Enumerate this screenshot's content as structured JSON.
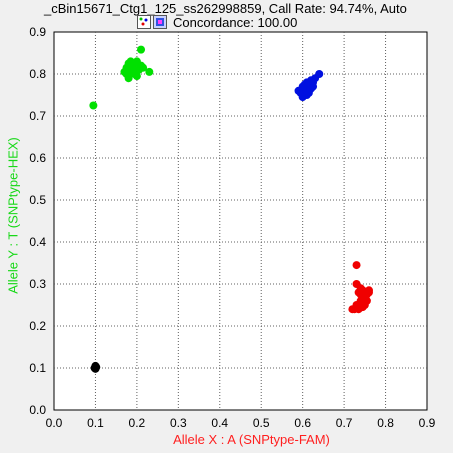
{
  "title": "_cBin15671_Ctg1_125_ss262998859,  Call Rate: 94.74%,  Auto",
  "subtitle": "Concordance: 100.00",
  "icons": [
    "cluster-plot-icon",
    "grid-icon"
  ],
  "chart_data": {
    "type": "scatter",
    "xlabel": "Allele X : A (SNPtype-FAM)",
    "ylabel": "Allele Y : T (SNPtype-HEX)",
    "xlim": [
      0,
      0.9
    ],
    "ylim": [
      0,
      0.9
    ],
    "xticks": [
      "0.0",
      "0.1",
      "0.2",
      "0.3",
      "0.4",
      "0.5",
      "0.6",
      "0.7",
      "0.8",
      "0.9"
    ],
    "yticks": [
      "0.0",
      "0.1",
      "0.2",
      "0.3",
      "0.4",
      "0.5",
      "0.6",
      "0.7",
      "0.8",
      "0.9"
    ],
    "grid": true,
    "series": [
      {
        "color": "#00e000",
        "points": [
          [
            0.095,
            0.725
          ],
          [
            0.21,
            0.858
          ],
          [
            0.23,
            0.805
          ],
          [
            0.17,
            0.805
          ],
          [
            0.175,
            0.815
          ],
          [
            0.18,
            0.79
          ],
          [
            0.185,
            0.83
          ],
          [
            0.19,
            0.82
          ],
          [
            0.195,
            0.8
          ],
          [
            0.2,
            0.83
          ],
          [
            0.205,
            0.81
          ],
          [
            0.21,
            0.82
          ],
          [
            0.19,
            0.81
          ],
          [
            0.18,
            0.825
          ],
          [
            0.2,
            0.795
          ],
          [
            0.215,
            0.815
          ],
          [
            0.185,
            0.8
          ],
          [
            0.195,
            0.825
          ],
          [
            0.175,
            0.8
          ]
        ]
      },
      {
        "color": "#0010e0",
        "points": [
          [
            0.64,
            0.8
          ],
          [
            0.595,
            0.755
          ],
          [
            0.6,
            0.76
          ],
          [
            0.605,
            0.765
          ],
          [
            0.61,
            0.75
          ],
          [
            0.615,
            0.77
          ],
          [
            0.62,
            0.775
          ],
          [
            0.625,
            0.78
          ],
          [
            0.6,
            0.745
          ],
          [
            0.61,
            0.76
          ],
          [
            0.62,
            0.765
          ],
          [
            0.63,
            0.79
          ],
          [
            0.605,
            0.775
          ],
          [
            0.615,
            0.755
          ],
          [
            0.59,
            0.76
          ],
          [
            0.625,
            0.77
          ],
          [
            0.61,
            0.78
          ],
          [
            0.6,
            0.77
          ],
          [
            0.62,
            0.785
          ]
        ]
      },
      {
        "color": "#f00000",
        "points": [
          [
            0.73,
            0.345
          ],
          [
            0.73,
            0.3
          ],
          [
            0.74,
            0.29
          ],
          [
            0.745,
            0.285
          ],
          [
            0.755,
            0.275
          ],
          [
            0.76,
            0.28
          ],
          [
            0.75,
            0.27
          ],
          [
            0.735,
            0.28
          ],
          [
            0.74,
            0.26
          ],
          [
            0.75,
            0.25
          ],
          [
            0.745,
            0.245
          ],
          [
            0.735,
            0.24
          ],
          [
            0.725,
            0.24
          ],
          [
            0.72,
            0.24
          ],
          [
            0.73,
            0.25
          ],
          [
            0.755,
            0.26
          ],
          [
            0.76,
            0.285
          ],
          [
            0.74,
            0.275
          ]
        ]
      },
      {
        "color": "#000000",
        "points": [
          [
            0.1,
            0.105
          ],
          [
            0.098,
            0.1
          ],
          [
            0.102,
            0.102
          ],
          [
            0.1,
            0.098
          ]
        ]
      }
    ]
  }
}
